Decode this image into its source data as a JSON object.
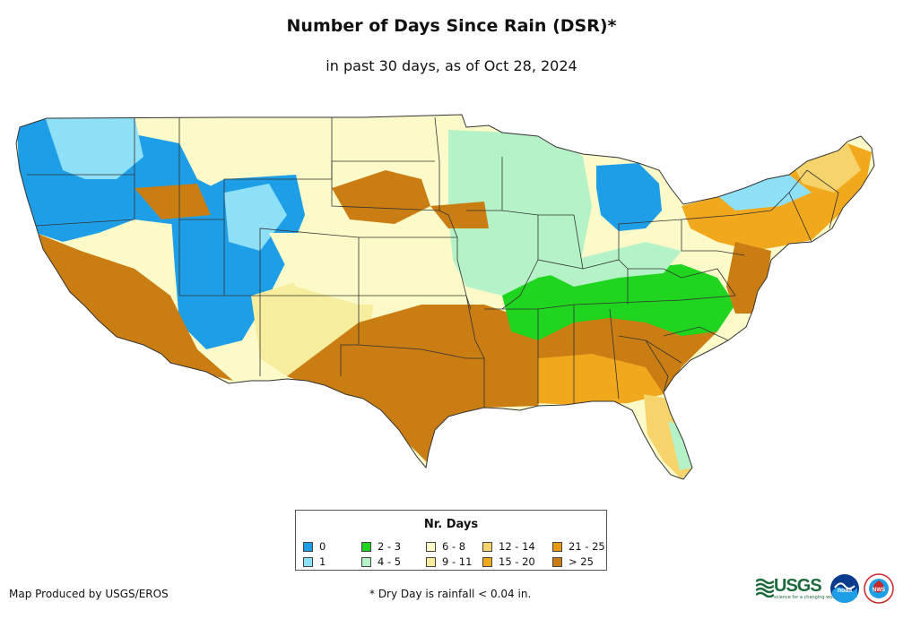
{
  "title": "Number of Days Since Rain (DSR)*",
  "subtitle": "in past 30 days, as of Oct 28, 2024",
  "legend": {
    "title": "Nr. Days",
    "items": [
      {
        "label": "0",
        "color": "#1f9ee8"
      },
      {
        "label": "1",
        "color": "#8ee0f7"
      },
      {
        "label": "2 - 3",
        "color": "#1fd51f"
      },
      {
        "label": "4 - 5",
        "color": "#b6f2c8"
      },
      {
        "label": "6 - 8",
        "color": "#fbfac8"
      },
      {
        "label": "9 - 11",
        "color": "#f7ed9e"
      },
      {
        "label": "12 - 14",
        "color": "#f7d36b"
      },
      {
        "label": "15 - 20",
        "color": "#f2a81d"
      },
      {
        "label": "21 - 25",
        "color": "#e59a12"
      },
      {
        "label": "> 25",
        "color": "#c97d12"
      }
    ]
  },
  "credit": "Map Produced by USGS/EROS",
  "footnote": "* Dry Day is rainfall < 0.04 in.",
  "logos": {
    "usgs": {
      "word": "USGS",
      "tagline": "science for a changing world"
    },
    "noaa": {
      "word": "noaa"
    },
    "nws": {
      "word": "NWS"
    }
  },
  "map": {
    "region": "Contiguous United States",
    "regions": [
      {
        "area": "Pacific Northwest / Washington-Oregon coast",
        "category": "0"
      },
      {
        "area": "Northern Rockies interior",
        "category": "1"
      },
      {
        "area": "Great Basin / Utah-Colorado",
        "category": "0"
      },
      {
        "area": "California / Southwest desert",
        "category": "> 25"
      },
      {
        "area": "New Mexico / Colorado plains",
        "category": "9 - 11"
      },
      {
        "area": "Northern Plains / Montana-Dakotas",
        "category": "6 - 8"
      },
      {
        "area": "Upper Midwest / Minnesota-Wisconsin-Iowa",
        "category": "4 - 5"
      },
      {
        "area": "Michigan",
        "category": "0"
      },
      {
        "area": "Ohio Valley / Tennessee / Mid-South",
        "category": "2 - 3"
      },
      {
        "area": "Texas / Oklahoma / Gulf Coast",
        "category": "> 25"
      },
      {
        "area": "Southeast / Georgia-Carolinas",
        "category": "> 25"
      },
      {
        "area": "Florida peninsula",
        "category": "12 - 14"
      },
      {
        "area": "Northeast / New England",
        "category": "15 - 20"
      },
      {
        "area": "Mid-Atlantic coast",
        "category": "> 25"
      }
    ]
  }
}
